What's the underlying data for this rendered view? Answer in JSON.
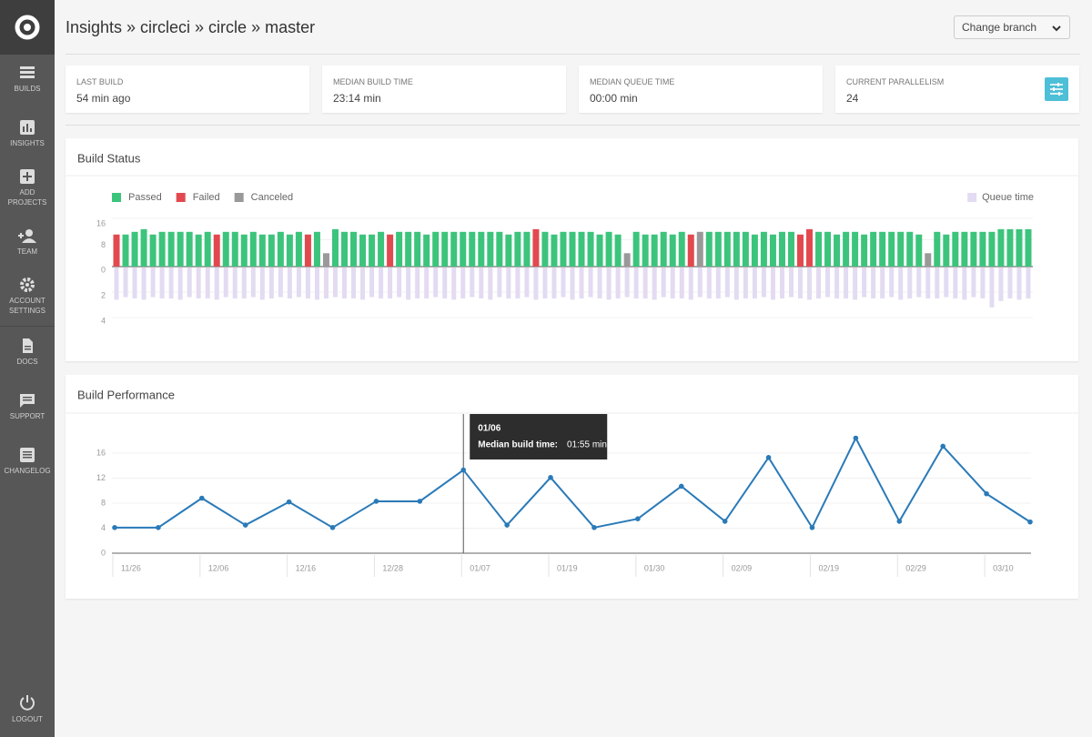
{
  "sidebar": {
    "items": [
      "BUILDS",
      "INSIGHTS",
      "ADD PROJECTS",
      "TEAM",
      "ACCOUNT SETTINGS",
      "DOCS",
      "SUPPORT",
      "CHANGELOG"
    ],
    "logout": "LOGOUT"
  },
  "header": {
    "title": "Insights » circleci » circle » master",
    "branch_button": "Change branch"
  },
  "stats": [
    {
      "label": "LAST BUILD",
      "value": "54 min ago"
    },
    {
      "label": "MEDIAN BUILD TIME",
      "value": "23:14 min"
    },
    {
      "label": "MEDIAN QUEUE TIME",
      "value": "00:00 min"
    },
    {
      "label": "CURRENT PARALLELISM",
      "value": "24"
    }
  ],
  "chart_data": [
    {
      "type": "bar",
      "title": "Build Status",
      "ylim": [
        0,
        16
      ],
      "yticks": [
        8,
        16
      ],
      "y2lim": [
        0,
        4
      ],
      "y2ticks": [
        0,
        2,
        4
      ],
      "grid": true,
      "series": [
        {
          "name": "Passed",
          "color": "#3cc47c",
          "values": [
            null,
            12,
            13,
            14,
            12,
            13,
            13,
            13,
            13,
            12,
            13,
            null,
            13,
            13,
            12,
            13,
            12,
            12,
            13,
            12,
            13,
            null,
            13,
            null,
            14,
            13,
            13,
            12,
            12,
            13,
            null,
            13,
            13,
            13,
            12,
            13,
            13,
            13,
            13,
            13,
            13,
            13,
            13,
            12,
            13,
            13,
            null,
            13,
            12,
            13,
            13,
            13,
            13,
            12,
            13,
            12,
            null,
            13,
            12,
            12,
            13,
            12,
            13,
            null,
            null,
            13,
            13,
            13,
            13,
            13,
            12,
            13,
            12,
            13,
            13,
            null,
            null,
            13,
            13,
            12,
            13,
            13,
            12,
            13,
            13,
            13,
            13,
            13,
            12,
            null,
            13,
            12,
            13,
            13,
            13,
            13,
            13,
            14,
            14,
            14,
            14
          ]
        },
        {
          "name": "Failed",
          "color": "#e2494f",
          "values": [
            12,
            null,
            null,
            null,
            null,
            null,
            null,
            null,
            null,
            null,
            null,
            12,
            null,
            null,
            null,
            null,
            null,
            null,
            null,
            null,
            null,
            12,
            null,
            null,
            null,
            null,
            null,
            null,
            null,
            null,
            12,
            null,
            null,
            null,
            null,
            null,
            null,
            null,
            null,
            null,
            null,
            null,
            null,
            null,
            null,
            null,
            14,
            null,
            null,
            null,
            null,
            null,
            null,
            null,
            null,
            null,
            null,
            null,
            null,
            null,
            null,
            null,
            null,
            12,
            null,
            null,
            null,
            null,
            null,
            null,
            null,
            null,
            null,
            null,
            null,
            12,
            14,
            null,
            null,
            null,
            null,
            null,
            null,
            null,
            null,
            null,
            null,
            null,
            null,
            null,
            null,
            null,
            null,
            null,
            null,
            null,
            null,
            null,
            null,
            null,
            null
          ]
        },
        {
          "name": "Canceled",
          "color": "#999999",
          "values": [
            null,
            null,
            null,
            null,
            null,
            null,
            null,
            null,
            null,
            null,
            null,
            null,
            null,
            null,
            null,
            null,
            null,
            null,
            null,
            null,
            null,
            null,
            null,
            5,
            null,
            null,
            null,
            null,
            null,
            null,
            null,
            null,
            null,
            null,
            null,
            null,
            null,
            null,
            null,
            null,
            null,
            null,
            null,
            null,
            null,
            null,
            null,
            null,
            null,
            null,
            null,
            null,
            null,
            null,
            null,
            null,
            5,
            null,
            null,
            null,
            null,
            null,
            null,
            null,
            13,
            null,
            null,
            null,
            null,
            null,
            null,
            null,
            null,
            null,
            null,
            null,
            null,
            null,
            null,
            null,
            null,
            null,
            null,
            null,
            null,
            null,
            null,
            null,
            null,
            5,
            null,
            null,
            null,
            null,
            null,
            null,
            null,
            null,
            null,
            null,
            null
          ]
        },
        {
          "name": "Queue time",
          "color": "#e3dbf2",
          "axis": "y2",
          "values": [
            2.6,
            2.4,
            2.5,
            2.6,
            2.4,
            2.5,
            2.5,
            2.6,
            2.4,
            2.5,
            2.5,
            2.6,
            2.4,
            2.5,
            2.5,
            2.4,
            2.6,
            2.5,
            2.4,
            2.5,
            2.4,
            2.5,
            2.6,
            2.5,
            2.4,
            2.5,
            2.5,
            2.6,
            2.4,
            2.5,
            2.5,
            2.4,
            2.6,
            2.5,
            2.5,
            2.4,
            2.5,
            2.6,
            2.5,
            2.4,
            2.5,
            2.6,
            2.4,
            2.5,
            2.5,
            2.4,
            2.6,
            2.5,
            2.5,
            2.4,
            2.6,
            2.5,
            2.4,
            2.5,
            2.6,
            2.5,
            2.4,
            2.5,
            2.5,
            2.6,
            2.4,
            2.5,
            2.5,
            2.6,
            2.4,
            2.5,
            2.5,
            2.4,
            2.6,
            2.5,
            2.5,
            2.4,
            2.6,
            2.5,
            2.4,
            2.5,
            2.6,
            2.5,
            2.4,
            2.5,
            2.5,
            2.6,
            2.4,
            2.5,
            2.5,
            2.4,
            2.6,
            2.5,
            2.4,
            2.5,
            2.5,
            2.4,
            2.5,
            2.6,
            2.4,
            2.5,
            3.2,
            2.7,
            2.5,
            2.6,
            2.5
          ]
        }
      ]
    },
    {
      "type": "line",
      "title": "Build Performance",
      "color": "#2a7ab8",
      "categories": [
        "11/26",
        null,
        "12/06",
        null,
        "12/16",
        null,
        "12/28",
        null,
        "01/07",
        null,
        "01/19",
        null,
        "01/30",
        null,
        "02/09",
        null,
        "02/19",
        null,
        "02/29",
        null,
        "03/10",
        null
      ],
      "values": [
        4.1,
        4.1,
        8.8,
        4.5,
        8.2,
        4.1,
        8.3,
        8.3,
        13.3,
        4.5,
        12.1,
        4.1,
        5.5,
        10.7,
        5.1,
        15.3,
        4.1,
        18.4,
        5.1,
        17.1,
        9.5,
        5.0
      ],
      "ylim": [
        0,
        20
      ],
      "yticks": [
        0,
        4,
        8,
        12,
        16
      ],
      "grid": true,
      "tooltip": {
        "date": "01/06",
        "label": "Median build time:",
        "value": "01:55 min"
      }
    }
  ]
}
